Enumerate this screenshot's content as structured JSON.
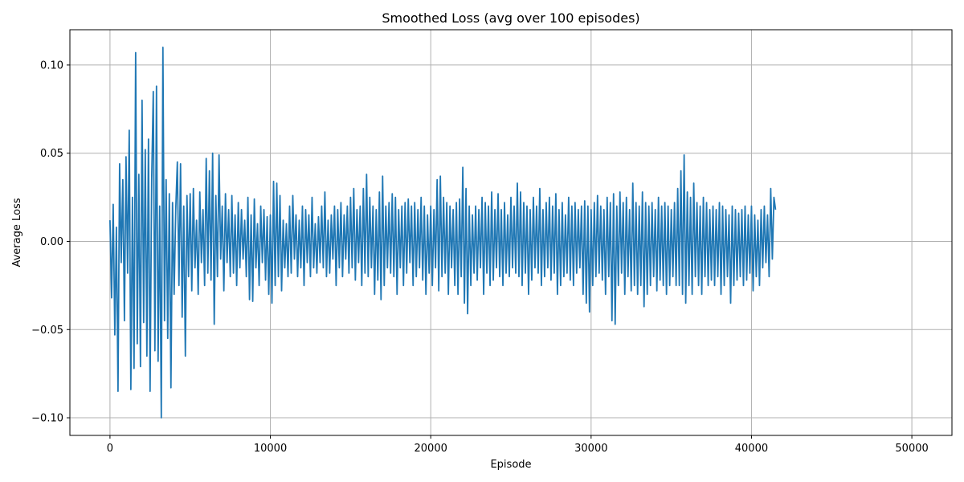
{
  "chart_data": {
    "type": "line",
    "title": "Smoothed Loss (avg over 100 episodes)",
    "xlabel": "Episode",
    "ylabel": "Average Loss",
    "xlim": [
      -2500,
      52500
    ],
    "ylim": [
      -0.11,
      0.12
    ],
    "grid": true,
    "x_ticks": [
      0,
      10000,
      20000,
      30000,
      40000,
      50000
    ],
    "x_tick_labels": [
      "0",
      "10000",
      "20000",
      "30000",
      "40000",
      "50000"
    ],
    "y_ticks": [
      -0.1,
      -0.05,
      0.0,
      0.05,
      0.1
    ],
    "y_tick_labels": [
      "−0.10",
      "−0.05",
      "0.00",
      "0.05",
      "0.10"
    ],
    "series": [
      {
        "color": "#1f77b4",
        "x_start": 0,
        "x_step": 100,
        "values": [
          0.012,
          -0.032,
          0.021,
          -0.053,
          0.008,
          -0.085,
          0.044,
          -0.012,
          0.035,
          -0.045,
          0.048,
          -0.018,
          0.063,
          -0.084,
          0.025,
          -0.072,
          0.107,
          -0.058,
          0.038,
          -0.071,
          0.08,
          -0.046,
          0.052,
          -0.065,
          0.058,
          -0.085,
          0.035,
          0.085,
          -0.062,
          0.088,
          -0.068,
          0.02,
          -0.1,
          0.11,
          -0.045,
          0.035,
          -0.055,
          0.027,
          -0.083,
          0.022,
          -0.03,
          0.018,
          0.045,
          -0.025,
          0.044,
          -0.043,
          0.02,
          -0.065,
          0.026,
          -0.02,
          0.027,
          -0.028,
          0.03,
          -0.015,
          0.012,
          -0.03,
          0.028,
          -0.012,
          0.018,
          -0.025,
          0.047,
          -0.018,
          0.04,
          -0.022,
          0.05,
          -0.047,
          0.026,
          -0.02,
          0.049,
          -0.01,
          0.02,
          -0.028,
          0.027,
          -0.012,
          0.018,
          -0.02,
          0.026,
          -0.018,
          0.015,
          -0.025,
          0.022,
          -0.015,
          0.018,
          -0.01,
          0.012,
          -0.02,
          0.025,
          -0.033,
          0.015,
          -0.034,
          0.024,
          -0.015,
          0.01,
          -0.025,
          0.02,
          -0.012,
          0.018,
          -0.022,
          0.014,
          -0.03,
          0.015,
          -0.035,
          0.034,
          -0.025,
          0.033,
          -0.02,
          0.026,
          -0.028,
          0.012,
          -0.015,
          0.01,
          -0.02,
          0.02,
          -0.018,
          0.026,
          -0.01,
          0.015,
          -0.02,
          0.012,
          -0.015,
          0.02,
          -0.025,
          0.018,
          -0.012,
          0.015,
          -0.02,
          0.025,
          -0.015,
          0.01,
          -0.018,
          0.014,
          -0.012,
          0.02,
          -0.015,
          0.028,
          -0.02,
          0.012,
          -0.018,
          0.015,
          -0.01,
          0.02,
          -0.025,
          0.018,
          -0.015,
          0.022,
          -0.02,
          0.015,
          -0.01,
          0.02,
          -0.018,
          0.025,
          -0.015,
          0.03,
          -0.022,
          0.018,
          -0.012,
          0.02,
          -0.025,
          0.03,
          -0.018,
          0.038,
          -0.02,
          0.025,
          -0.015,
          0.02,
          -0.03,
          0.018,
          -0.022,
          0.028,
          -0.033,
          0.037,
          -0.025,
          0.02,
          -0.015,
          0.022,
          -0.018,
          0.027,
          -0.02,
          0.025,
          -0.03,
          0.018,
          -0.015,
          0.02,
          -0.025,
          0.022,
          -0.018,
          0.024,
          -0.012,
          0.02,
          -0.025,
          0.022,
          -0.02,
          0.018,
          -0.015,
          0.025,
          -0.022,
          0.02,
          -0.03,
          0.015,
          -0.018,
          0.02,
          -0.025,
          0.018,
          -0.015,
          0.035,
          -0.028,
          0.037,
          -0.02,
          0.025,
          -0.018,
          0.022,
          -0.03,
          0.02,
          -0.015,
          0.018,
          -0.025,
          0.022,
          -0.03,
          0.024,
          -0.02,
          0.042,
          -0.035,
          0.03,
          -0.041,
          0.02,
          -0.025,
          0.015,
          -0.018,
          0.02,
          -0.022,
          0.018,
          -0.015,
          0.025,
          -0.03,
          0.022,
          -0.018,
          0.02,
          -0.025,
          0.028,
          -0.022,
          0.018,
          -0.015,
          0.027,
          -0.02,
          0.018,
          -0.025,
          0.022,
          -0.018,
          0.015,
          -0.02,
          0.025,
          -0.015,
          0.02,
          -0.018,
          0.033,
          -0.02,
          0.028,
          -0.025,
          0.022,
          -0.018,
          0.02,
          -0.03,
          0.018,
          -0.022,
          0.025,
          -0.015,
          0.02,
          -0.018,
          0.03,
          -0.025,
          0.018,
          -0.02,
          0.022,
          -0.015,
          0.025,
          -0.022,
          0.02,
          -0.018,
          0.027,
          -0.03,
          0.018,
          -0.025,
          0.022,
          -0.02,
          0.015,
          -0.018,
          0.025,
          -0.022,
          0.02,
          -0.025,
          0.022,
          -0.018,
          0.018,
          -0.015,
          0.02,
          -0.03,
          0.023,
          -0.035,
          0.02,
          -0.04,
          0.018,
          -0.025,
          0.022,
          -0.02,
          0.026,
          -0.018,
          0.02,
          -0.022,
          0.018,
          -0.03,
          0.025,
          -0.02,
          0.022,
          -0.045,
          0.027,
          -0.047,
          0.02,
          -0.025,
          0.028,
          -0.018,
          0.022,
          -0.03,
          0.025,
          -0.02,
          0.018,
          -0.028,
          0.033,
          -0.025,
          0.022,
          -0.03,
          0.02,
          -0.025,
          0.028,
          -0.037,
          0.022,
          -0.03,
          0.02,
          -0.025,
          0.022,
          -0.02,
          0.018,
          -0.028,
          0.025,
          -0.022,
          0.02,
          -0.025,
          0.022,
          -0.03,
          0.02,
          -0.025,
          0.018,
          -0.02,
          0.022,
          -0.025,
          0.03,
          -0.025,
          0.04,
          -0.03,
          0.049,
          -0.035,
          0.028,
          -0.025,
          0.025,
          -0.03,
          0.033,
          -0.02,
          0.022,
          -0.025,
          0.02,
          -0.03,
          0.025,
          -0.02,
          0.022,
          -0.025,
          0.018,
          -0.022,
          0.02,
          -0.025,
          0.018,
          -0.02,
          0.022,
          -0.03,
          0.02,
          -0.025,
          0.018,
          -0.02,
          0.015,
          -0.035,
          0.02,
          -0.025,
          0.018,
          -0.022,
          0.016,
          -0.02,
          0.018,
          -0.025,
          0.02,
          -0.022,
          0.015,
          -0.018,
          0.02,
          -0.028,
          0.015,
          -0.02,
          0.012,
          -0.025,
          0.018,
          -0.015,
          0.02,
          -0.012,
          0.015,
          -0.02,
          0.03,
          -0.01,
          0.025,
          0.018
        ]
      }
    ]
  }
}
